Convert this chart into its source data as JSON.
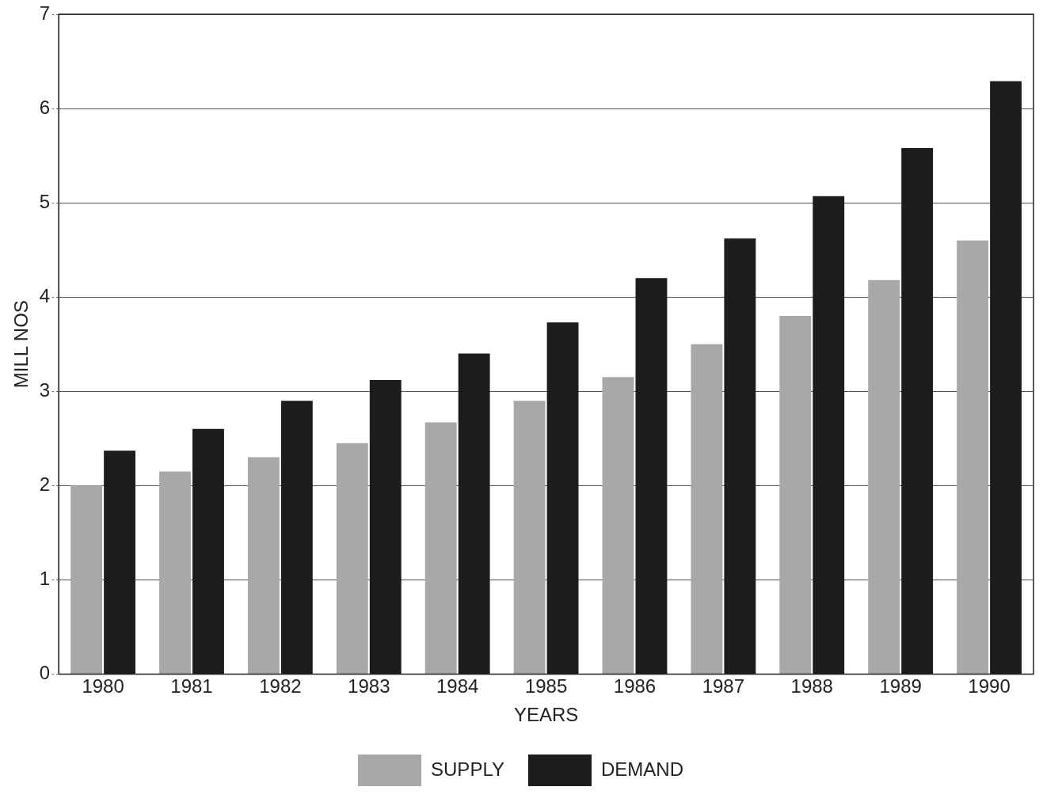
{
  "chart_data": {
    "type": "bar",
    "xlabel": "YEARS",
    "ylabel": "MILL NOS",
    "categories": [
      "1980",
      "1981",
      "1982",
      "1983",
      "1984",
      "1985",
      "1986",
      "1987",
      "1988",
      "1989",
      "1990"
    ],
    "series": [
      {
        "name": "SUPPLY",
        "color": "#a8a8a8",
        "values": [
          2.0,
          2.15,
          2.3,
          2.45,
          2.67,
          2.9,
          3.15,
          3.5,
          3.8,
          4.18,
          4.6
        ]
      },
      {
        "name": "DEMAND",
        "color": "#1c1c1c",
        "values": [
          2.37,
          2.6,
          2.9,
          3.12,
          3.4,
          3.73,
          4.2,
          4.62,
          5.07,
          5.58,
          6.29
        ]
      }
    ],
    "ylim": [
      0,
      7
    ],
    "yticks": [
      0,
      1,
      2,
      3,
      4,
      5,
      6,
      7
    ],
    "grid": "y",
    "legend": "bottom"
  }
}
